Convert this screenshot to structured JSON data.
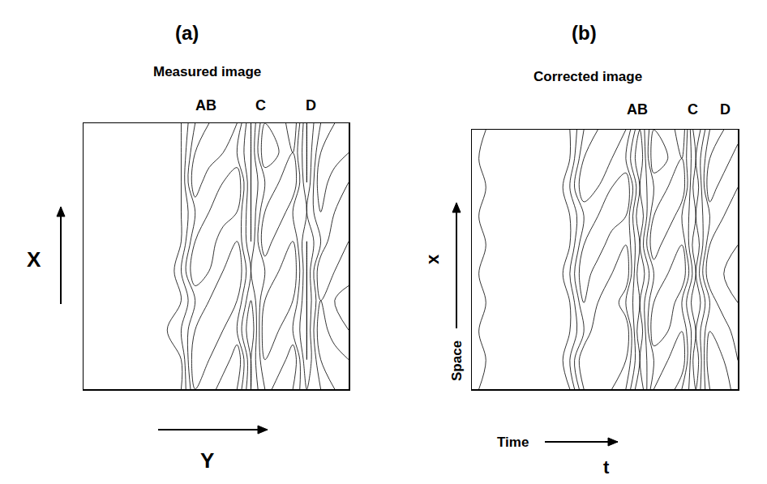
{
  "chart_data": [
    {
      "type": "contour",
      "panel": "(a)",
      "title": "Measured image",
      "x_label": "Y",
      "y_label": "X",
      "band_labels": [
        {
          "text": "AB",
          "x": 8.8
        },
        {
          "text": "C",
          "x": 12.7
        },
        {
          "text": "D",
          "x": 16.3
        }
      ],
      "xlim": [
        0,
        19
      ],
      "ylim": [
        0,
        9
      ],
      "levels": [
        1,
        2,
        3,
        4,
        5
      ],
      "tick_labels": false,
      "color": "#000000",
      "z": [
        [
          0,
          0,
          0,
          0,
          0,
          0,
          0,
          1,
          4,
          3,
          5,
          4,
          1,
          3,
          5,
          4,
          2,
          3,
          4,
          5
        ],
        [
          1,
          0,
          0,
          0,
          0,
          0,
          0,
          1,
          5,
          4,
          3,
          5,
          1,
          4,
          3,
          5,
          1,
          4,
          5,
          4
        ],
        [
          0,
          0,
          0,
          0,
          0,
          0,
          1,
          2,
          4,
          5,
          4,
          3,
          0,
          5,
          4,
          3,
          1,
          5,
          3,
          4
        ],
        [
          1,
          0,
          0,
          0,
          0,
          0,
          0,
          1,
          3,
          4,
          5,
          4,
          1,
          4,
          5,
          4,
          1,
          4,
          4,
          5
        ],
        [
          0,
          0,
          0,
          0,
          0,
          0,
          0,
          2,
          5,
          4,
          4,
          5,
          2,
          3,
          4,
          5,
          1,
          5,
          4,
          3
        ],
        [
          0,
          0,
          0,
          0,
          0,
          0,
          0,
          1,
          4,
          5,
          3,
          4,
          1,
          5,
          3,
          4,
          1,
          3,
          5,
          4
        ],
        [
          0,
          0,
          0,
          0,
          0,
          0,
          0,
          1,
          3,
          4,
          5,
          4,
          1,
          4,
          5,
          3,
          2,
          4,
          4,
          5
        ],
        [
          0,
          0,
          0,
          0,
          0,
          0,
          0,
          1,
          5,
          3,
          4,
          5,
          1,
          3,
          4,
          5,
          1,
          5,
          3,
          4
        ],
        [
          1,
          0,
          0,
          0,
          0,
          0,
          0,
          1,
          4,
          5,
          4,
          3,
          1,
          5,
          4,
          4,
          1,
          4,
          5,
          4
        ],
        [
          1,
          0,
          0,
          0,
          0,
          0,
          0,
          1,
          3,
          4,
          5,
          4,
          1,
          4,
          3,
          5,
          1,
          3,
          4,
          5
        ]
      ]
    },
    {
      "type": "contour",
      "panel": "(b)",
      "title": "Corrected image",
      "x_label": "t",
      "x_name": "Time",
      "y_label": "x",
      "y_name": "Space",
      "band_labels": [
        {
          "text": "AB",
          "x": 11.8
        },
        {
          "text": "C",
          "x": 15.8
        },
        {
          "text": "D",
          "x": 18.1
        }
      ],
      "xlim": [
        0,
        19
      ],
      "ylim": [
        0,
        9
      ],
      "levels": [
        1,
        2,
        3,
        4,
        5
      ],
      "tick_labels": false,
      "color": "#000000",
      "z": [
        [
          2,
          0,
          0,
          0,
          0,
          0,
          0,
          1,
          4,
          5,
          4,
          3,
          0,
          4,
          5,
          3,
          1,
          4,
          5,
          3
        ],
        [
          2,
          1,
          0,
          0,
          0,
          0,
          0,
          2,
          5,
          4,
          5,
          4,
          1,
          3,
          4,
          5,
          0,
          5,
          4,
          4
        ],
        [
          2,
          0,
          0,
          0,
          0,
          0,
          0,
          1,
          3,
          5,
          4,
          5,
          0,
          5,
          4,
          4,
          1,
          4,
          3,
          5
        ],
        [
          2,
          1,
          0,
          0,
          0,
          0,
          0,
          1,
          4,
          4,
          5,
          3,
          1,
          4,
          5,
          3,
          0,
          3,
          5,
          4
        ],
        [
          2,
          0,
          0,
          0,
          0,
          0,
          0,
          2,
          5,
          3,
          4,
          5,
          0,
          3,
          4,
          5,
          1,
          5,
          4,
          3
        ],
        [
          2,
          1,
          0,
          0,
          0,
          0,
          0,
          1,
          4,
          5,
          3,
          4,
          1,
          5,
          3,
          4,
          0,
          4,
          5,
          4
        ],
        [
          2,
          0,
          0,
          0,
          0,
          0,
          0,
          1,
          3,
          4,
          5,
          4,
          0,
          4,
          5,
          3,
          1,
          3,
          4,
          5
        ],
        [
          2,
          1,
          0,
          0,
          0,
          0,
          0,
          2,
          5,
          4,
          4,
          5,
          1,
          3,
          4,
          5,
          0,
          5,
          3,
          4
        ],
        [
          2,
          0,
          0,
          0,
          0,
          0,
          0,
          1,
          4,
          5,
          4,
          3,
          0,
          5,
          4,
          4,
          1,
          4,
          5,
          3
        ],
        [
          2,
          1,
          0,
          0,
          0,
          0,
          0,
          1,
          3,
          4,
          5,
          4,
          1,
          4,
          3,
          5,
          0,
          3,
          4,
          5
        ]
      ]
    }
  ]
}
